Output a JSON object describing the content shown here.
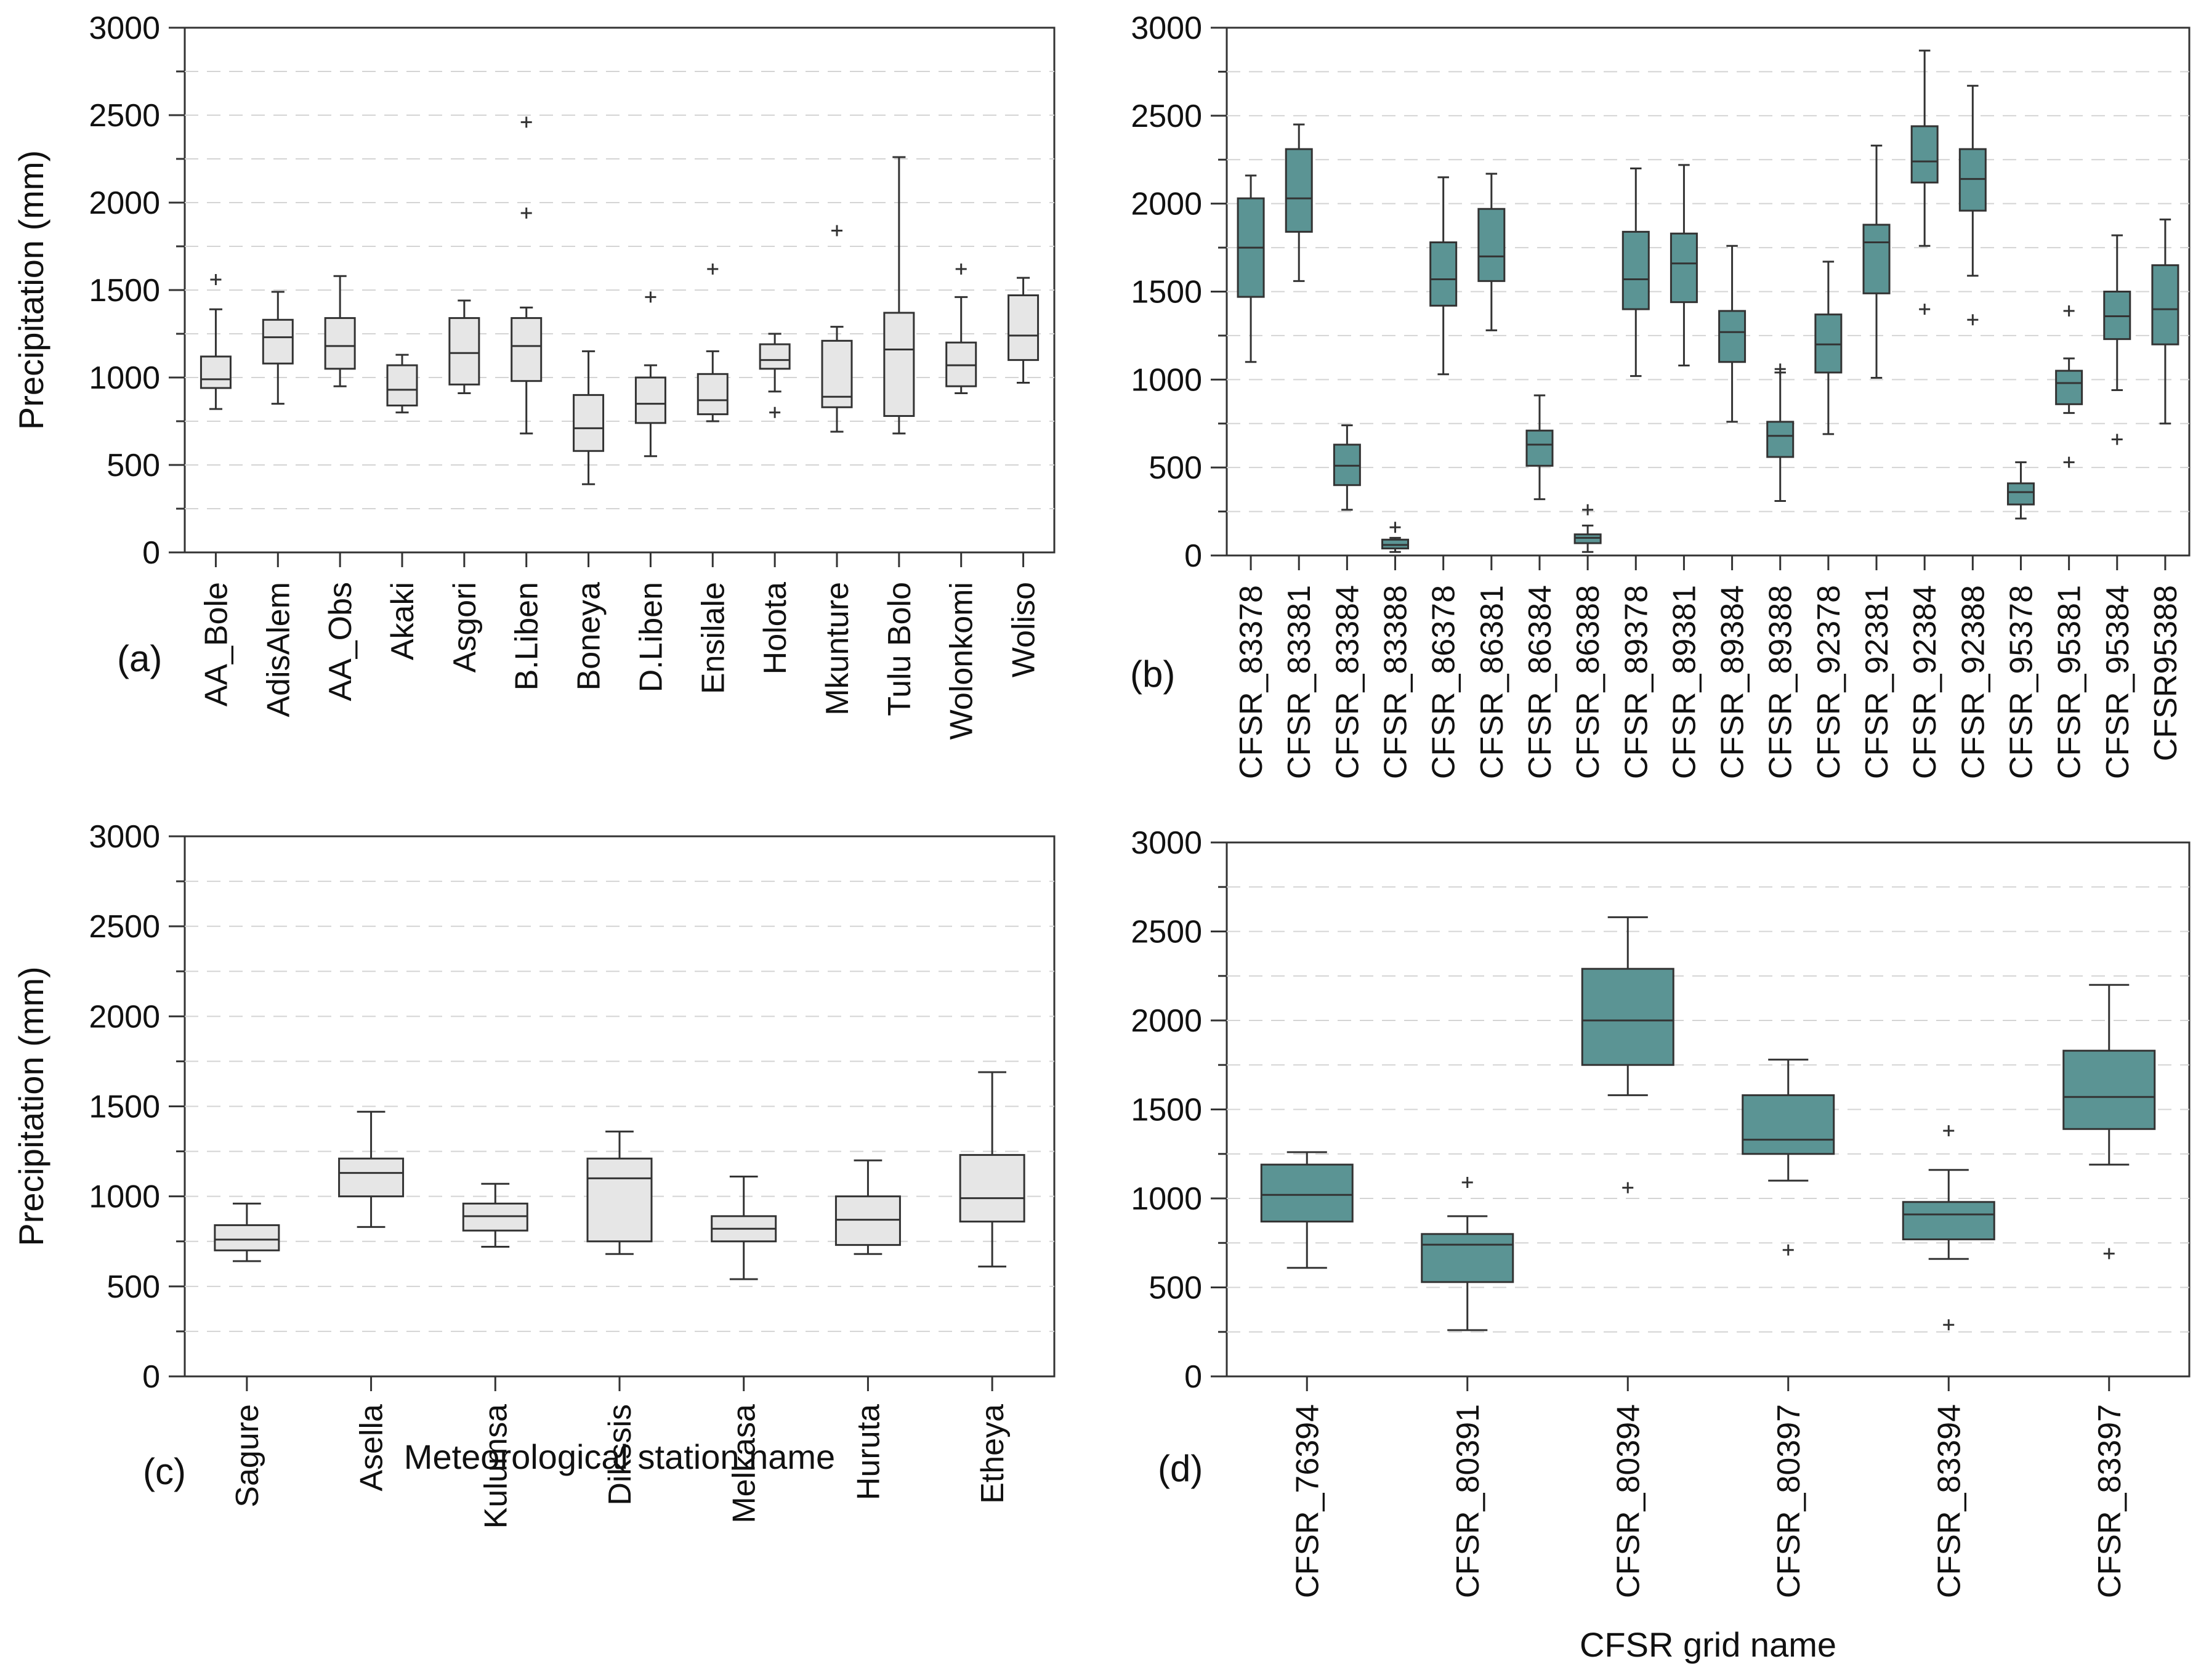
{
  "colors": {
    "gray_box": "#e6e6e6",
    "teal_box": "#5b9494",
    "line": "#333333",
    "grid": "#d4d4d4"
  },
  "chart_data": [
    {
      "panel": "(a)",
      "type": "boxplot",
      "ylabel": "Precipitation (mm)",
      "xlabel": "",
      "ylim": [
        0,
        3000
      ],
      "yticks": [
        0,
        500,
        1000,
        1500,
        2000,
        2500,
        3000
      ],
      "grid": true,
      "box_color": "gray",
      "categories": [
        "AA_Bole",
        "AdisAlem",
        "AA_Obs",
        "Akaki",
        "Asgori",
        "B.Liben",
        "Boneya",
        "D.Liben",
        "Ensilale",
        "Holota",
        "Mkunture",
        "Tulu Bolo",
        "Wolonkomi",
        "Woliso"
      ],
      "boxes": [
        {
          "min": 820,
          "q1": 940,
          "median": 990,
          "q3": 1120,
          "max": 1390,
          "outliers": [
            1560
          ]
        },
        {
          "min": 850,
          "q1": 1080,
          "median": 1230,
          "q3": 1330,
          "max": 1490,
          "outliers": []
        },
        {
          "min": 950,
          "q1": 1050,
          "median": 1180,
          "q3": 1340,
          "max": 1580,
          "outliers": []
        },
        {
          "min": 800,
          "q1": 840,
          "median": 930,
          "q3": 1070,
          "max": 1130,
          "outliers": []
        },
        {
          "min": 910,
          "q1": 960,
          "median": 1140,
          "q3": 1340,
          "max": 1440,
          "outliers": []
        },
        {
          "min": 680,
          "q1": 980,
          "median": 1180,
          "q3": 1340,
          "max": 1400,
          "outliers": [
            1940,
            2460
          ]
        },
        {
          "min": 390,
          "q1": 580,
          "median": 710,
          "q3": 900,
          "max": 1150,
          "outliers": []
        },
        {
          "min": 550,
          "q1": 740,
          "median": 850,
          "q3": 1000,
          "max": 1070,
          "outliers": [
            1460
          ]
        },
        {
          "min": 750,
          "q1": 790,
          "median": 870,
          "q3": 1020,
          "max": 1150,
          "outliers": [
            1620
          ]
        },
        {
          "min": 920,
          "q1": 1050,
          "median": 1100,
          "q3": 1190,
          "max": 1250,
          "outliers": [
            800
          ]
        },
        {
          "min": 690,
          "q1": 830,
          "median": 890,
          "q3": 1210,
          "max": 1290,
          "outliers": [
            1840
          ]
        },
        {
          "min": 680,
          "q1": 780,
          "median": 1160,
          "q3": 1370,
          "max": 2260,
          "outliers": []
        },
        {
          "min": 910,
          "q1": 950,
          "median": 1070,
          "q3": 1200,
          "max": 1460,
          "outliers": [
            1620
          ]
        },
        {
          "min": 970,
          "q1": 1100,
          "median": 1240,
          "q3": 1470,
          "max": 1570,
          "outliers": []
        }
      ]
    },
    {
      "panel": "(b)",
      "type": "boxplot",
      "ylabel": "",
      "xlabel": "",
      "ylim": [
        0,
        3000
      ],
      "yticks": [
        0,
        500,
        1000,
        1500,
        2000,
        2500,
        3000
      ],
      "grid": true,
      "box_color": "teal",
      "categories": [
        "CFSR_83378",
        "CFSR_83381",
        "CFSR_83384",
        "CFSR_83388",
        "CFSR_86378",
        "CFSR_86381",
        "CFSR_86384",
        "CFSR_86388",
        "CFSR_89378",
        "CFSR_89381",
        "CFSR_89384",
        "CFSR_89388",
        "CFSR_92378",
        "CFSR_92381",
        "CFSR_92384",
        "CFSR_92388",
        "CFSR_95378",
        "CFSR_95381",
        "CFSR_95384",
        "CFSR95388"
      ],
      "boxes": [
        {
          "min": 1100,
          "q1": 1470,
          "median": 1750,
          "q3": 2030,
          "max": 2160,
          "outliers": []
        },
        {
          "min": 1560,
          "q1": 1840,
          "median": 2030,
          "q3": 2310,
          "max": 2450,
          "outliers": []
        },
        {
          "min": 260,
          "q1": 400,
          "median": 510,
          "q3": 630,
          "max": 740,
          "outliers": []
        },
        {
          "min": 20,
          "q1": 40,
          "median": 60,
          "q3": 90,
          "max": 100,
          "outliers": [
            160
          ]
        },
        {
          "min": 1030,
          "q1": 1420,
          "median": 1570,
          "q3": 1780,
          "max": 2150,
          "outliers": []
        },
        {
          "min": 1280,
          "q1": 1560,
          "median": 1700,
          "q3": 1970,
          "max": 2170,
          "outliers": []
        },
        {
          "min": 320,
          "q1": 510,
          "median": 630,
          "q3": 710,
          "max": 910,
          "outliers": []
        },
        {
          "min": 20,
          "q1": 70,
          "median": 100,
          "q3": 120,
          "max": 170,
          "outliers": [
            260
          ]
        },
        {
          "min": 1020,
          "q1": 1400,
          "median": 1570,
          "q3": 1840,
          "max": 2200,
          "outliers": []
        },
        {
          "min": 1080,
          "q1": 1440,
          "median": 1660,
          "q3": 1830,
          "max": 2220,
          "outliers": []
        },
        {
          "min": 760,
          "q1": 1100,
          "median": 1270,
          "q3": 1390,
          "max": 1760,
          "outliers": []
        },
        {
          "min": 310,
          "q1": 560,
          "median": 680,
          "q3": 760,
          "max": 1040,
          "outliers": [
            1060
          ]
        },
        {
          "min": 690,
          "q1": 1040,
          "median": 1200,
          "q3": 1370,
          "max": 1670,
          "outliers": []
        },
        {
          "min": 1010,
          "q1": 1490,
          "median": 1780,
          "q3": 1880,
          "max": 2330,
          "outliers": []
        },
        {
          "min": 1760,
          "q1": 2120,
          "median": 2240,
          "q3": 2440,
          "max": 2870,
          "outliers": [
            1400
          ]
        },
        {
          "min": 1590,
          "q1": 1960,
          "median": 2140,
          "q3": 2310,
          "max": 2670,
          "outliers": [
            1340
          ]
        },
        {
          "min": 210,
          "q1": 290,
          "median": 360,
          "q3": 410,
          "max": 530,
          "outliers": []
        },
        {
          "min": 810,
          "q1": 860,
          "median": 980,
          "q3": 1050,
          "max": 1120,
          "outliers": [
            530,
            1390
          ]
        },
        {
          "min": 940,
          "q1": 1230,
          "median": 1360,
          "q3": 1500,
          "max": 1820,
          "outliers": [
            660
          ]
        },
        {
          "min": 750,
          "q1": 1200,
          "median": 1400,
          "q3": 1650,
          "max": 1910,
          "outliers": []
        }
      ]
    },
    {
      "panel": "(c)",
      "type": "boxplot",
      "ylabel": "Precipitation (mm)",
      "xlabel": "Meteorological station name",
      "ylim": [
        0,
        3000
      ],
      "yticks": [
        0,
        500,
        1000,
        1500,
        2000,
        2500,
        3000
      ],
      "grid": true,
      "box_color": "gray",
      "categories": [
        "Sagure",
        "Asella",
        "Kulumsa",
        "Dikssis",
        "Melkasa",
        "Huruta",
        "Etheya"
      ],
      "boxes": [
        {
          "min": 640,
          "q1": 700,
          "median": 760,
          "q3": 840,
          "max": 960,
          "outliers": []
        },
        {
          "min": 830,
          "q1": 1000,
          "median": 1130,
          "q3": 1210,
          "max": 1470,
          "outliers": []
        },
        {
          "min": 720,
          "q1": 810,
          "median": 890,
          "q3": 960,
          "max": 1070,
          "outliers": []
        },
        {
          "min": 680,
          "q1": 750,
          "median": 1100,
          "q3": 1210,
          "max": 1360,
          "outliers": []
        },
        {
          "min": 540,
          "q1": 750,
          "median": 820,
          "q3": 890,
          "max": 1110,
          "outliers": []
        },
        {
          "min": 680,
          "q1": 730,
          "median": 870,
          "q3": 1000,
          "max": 1200,
          "outliers": []
        },
        {
          "min": 610,
          "q1": 860,
          "median": 990,
          "q3": 1230,
          "max": 1690,
          "outliers": []
        }
      ]
    },
    {
      "panel": "(d)",
      "type": "boxplot",
      "ylabel": "",
      "xlabel": "CFSR grid name",
      "ylim": [
        0,
        3000
      ],
      "yticks": [
        0,
        500,
        1000,
        1500,
        2000,
        2500,
        3000
      ],
      "grid": true,
      "box_color": "teal",
      "categories": [
        "CFSR_76394",
        "CFSR_80391",
        "CFSR_80394",
        "CFSR_80397",
        "CFSR_83394",
        "CFSR_83397"
      ],
      "boxes": [
        {
          "min": 610,
          "q1": 870,
          "median": 1020,
          "q3": 1190,
          "max": 1260,
          "outliers": []
        },
        {
          "min": 260,
          "q1": 530,
          "median": 740,
          "q3": 800,
          "max": 900,
          "outliers": [
            1090
          ]
        },
        {
          "min": 1580,
          "q1": 1750,
          "median": 2000,
          "q3": 2290,
          "max": 2580,
          "outliers": [
            1060
          ]
        },
        {
          "min": 1100,
          "q1": 1250,
          "median": 1330,
          "q3": 1580,
          "max": 1780,
          "outliers": [
            710
          ]
        },
        {
          "min": 660,
          "q1": 770,
          "median": 910,
          "q3": 980,
          "max": 1160,
          "outliers": [
            290,
            1380
          ]
        },
        {
          "min": 1190,
          "q1": 1390,
          "median": 1570,
          "q3": 1830,
          "max": 2200,
          "outliers": [
            690
          ]
        }
      ]
    }
  ]
}
